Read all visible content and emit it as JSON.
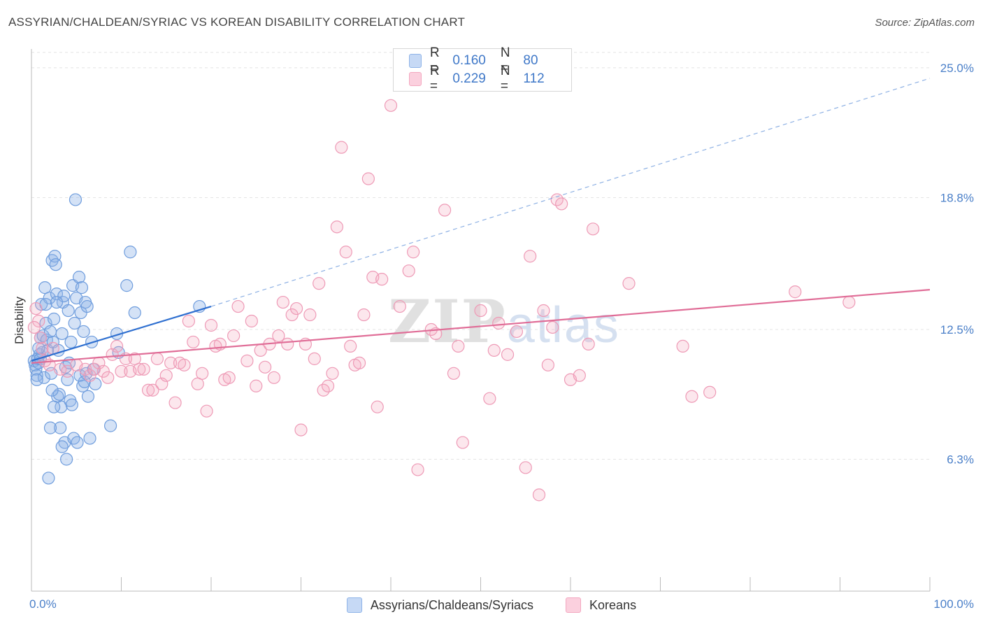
{
  "title": "ASSYRIAN/CHALDEAN/SYRIAC VS KOREAN DISABILITY CORRELATION CHART",
  "source": "Source: ZipAtlas.com",
  "watermark": {
    "zip": "ZIP",
    "atlas": "atlas"
  },
  "legend": {
    "r_label": "R =",
    "n_label": "N =",
    "rows": [
      {
        "r": "0.160",
        "n": "80"
      },
      {
        "r": "0.229",
        "n": "112"
      }
    ]
  },
  "bottom_legend": [
    "Assyrians/Chaldeans/Syriacs",
    "Koreans"
  ],
  "colors": {
    "blue": "#8fb4e8",
    "blue_line": "#2e6fd0",
    "pink": "#f3a8c0",
    "pink_line": "#e06d97",
    "grid": "#e4e4e4"
  },
  "chart_data": {
    "type": "scatter",
    "title": "ASSYRIAN/CHALDEAN/SYRIAC VS KOREAN DISABILITY CORRELATION CHART",
    "ylabel": "Disability",
    "xlabel": "",
    "xlim": [
      0,
      100
    ],
    "ylim": [
      0,
      25.9
    ],
    "x_tick_labels": [
      "0.0%",
      "100.0%"
    ],
    "y_ticks": [
      6.3,
      12.5,
      18.8,
      25.0
    ],
    "y_tick_labels": [
      "6.3%",
      "12.5%",
      "18.8%",
      "25.0%"
    ],
    "grid": true,
    "legend_placement": "top-center",
    "series": [
      {
        "name": "Assyrians/Chaldeans/Syriacs",
        "r": 0.16,
        "n": 80,
        "trend": {
          "x": [
            0,
            20
          ],
          "y": [
            11.0,
            13.6
          ],
          "extended_to": [
            100,
            24.5
          ]
        },
        "points": [
          [
            0.3,
            11.0
          ],
          [
            0.4,
            10.8
          ],
          [
            0.5,
            10.6
          ],
          [
            0.6,
            10.3
          ],
          [
            0.7,
            11.1
          ],
          [
            0.8,
            10.9
          ],
          [
            0.9,
            11.3
          ],
          [
            1.0,
            12.1
          ],
          [
            1.1,
            13.7
          ],
          [
            1.2,
            11.4
          ],
          [
            1.3,
            12.2
          ],
          [
            1.4,
            10.2
          ],
          [
            1.5,
            14.5
          ],
          [
            1.6,
            12.8
          ],
          [
            1.7,
            12.0
          ],
          [
            1.8,
            11.5
          ],
          [
            2.0,
            14.0
          ],
          [
            2.1,
            12.4
          ],
          [
            2.2,
            10.4
          ],
          [
            2.3,
            15.8
          ],
          [
            2.4,
            11.9
          ],
          [
            2.5,
            13.0
          ],
          [
            2.6,
            16.0
          ],
          [
            2.7,
            15.6
          ],
          [
            2.8,
            14.2
          ],
          [
            2.9,
            9.3
          ],
          [
            3.0,
            11.5
          ],
          [
            3.1,
            9.4
          ],
          [
            3.2,
            7.8
          ],
          [
            3.3,
            8.8
          ],
          [
            3.4,
            12.3
          ],
          [
            3.5,
            13.8
          ],
          [
            3.6,
            14.1
          ],
          [
            3.7,
            7.1
          ],
          [
            3.8,
            10.7
          ],
          [
            3.9,
            6.3
          ],
          [
            4.0,
            10.1
          ],
          [
            4.1,
            13.4
          ],
          [
            4.2,
            10.9
          ],
          [
            4.3,
            9.1
          ],
          [
            4.4,
            11.9
          ],
          [
            4.5,
            8.9
          ],
          [
            4.6,
            14.6
          ],
          [
            4.7,
            7.3
          ],
          [
            4.8,
            12.8
          ],
          [
            4.9,
            18.7
          ],
          [
            5.0,
            14.0
          ],
          [
            5.1,
            7.1
          ],
          [
            5.3,
            15.0
          ],
          [
            5.4,
            10.3
          ],
          [
            5.5,
            13.3
          ],
          [
            5.6,
            14.5
          ],
          [
            5.7,
            9.8
          ],
          [
            5.8,
            12.4
          ],
          [
            5.9,
            10.0
          ],
          [
            6.0,
            13.8
          ],
          [
            6.1,
            10.4
          ],
          [
            6.2,
            13.6
          ],
          [
            6.3,
            9.3
          ],
          [
            6.5,
            7.3
          ],
          [
            6.7,
            11.9
          ],
          [
            6.9,
            10.6
          ],
          [
            7.1,
            9.9
          ],
          [
            8.8,
            7.9
          ],
          [
            9.5,
            12.3
          ],
          [
            9.7,
            11.4
          ],
          [
            10.6,
            14.6
          ],
          [
            11.0,
            16.2
          ],
          [
            11.5,
            13.3
          ],
          [
            18.7,
            13.6
          ],
          [
            1.9,
            5.4
          ],
          [
            2.1,
            7.8
          ],
          [
            2.3,
            9.6
          ],
          [
            2.5,
            8.8
          ],
          [
            1.0,
            11.1
          ],
          [
            0.6,
            10.1
          ],
          [
            0.8,
            11.6
          ],
          [
            1.6,
            13.7
          ],
          [
            2.8,
            13.8
          ],
          [
            3.4,
            6.9
          ]
        ]
      },
      {
        "name": "Koreans",
        "r": 0.229,
        "n": 112,
        "trend": {
          "x": [
            0,
            100
          ],
          "y": [
            10.9,
            14.4
          ]
        },
        "points": [
          [
            0.5,
            13.5
          ],
          [
            0.8,
            12.9
          ],
          [
            1.0,
            12.1
          ],
          [
            1.2,
            11.6
          ],
          [
            1.5,
            11.0
          ],
          [
            2.0,
            10.8
          ],
          [
            2.4,
            11.6
          ],
          [
            3.2,
            10.6
          ],
          [
            4.0,
            10.5
          ],
          [
            5.0,
            10.8
          ],
          [
            6.0,
            10.6
          ],
          [
            6.5,
            10.3
          ],
          [
            7.0,
            10.6
          ],
          [
            7.5,
            10.9
          ],
          [
            8.0,
            10.5
          ],
          [
            8.5,
            10.2
          ],
          [
            9.0,
            11.3
          ],
          [
            9.5,
            11.7
          ],
          [
            10.0,
            10.5
          ],
          [
            10.5,
            11.1
          ],
          [
            11.0,
            10.5
          ],
          [
            11.5,
            11.1
          ],
          [
            12.0,
            10.6
          ],
          [
            12.5,
            10.6
          ],
          [
            13.0,
            9.6
          ],
          [
            13.5,
            9.6
          ],
          [
            14.0,
            11.1
          ],
          [
            14.5,
            9.9
          ],
          [
            15.0,
            10.3
          ],
          [
            15.5,
            10.9
          ],
          [
            16.0,
            9.0
          ],
          [
            16.5,
            10.9
          ],
          [
            17.0,
            10.8
          ],
          [
            17.5,
            12.9
          ],
          [
            18.0,
            11.9
          ],
          [
            18.5,
            9.9
          ],
          [
            19.0,
            10.4
          ],
          [
            19.5,
            8.6
          ],
          [
            20.0,
            12.7
          ],
          [
            20.5,
            11.7
          ],
          [
            21.0,
            11.8
          ],
          [
            21.5,
            10.1
          ],
          [
            22.0,
            10.2
          ],
          [
            22.5,
            12.2
          ],
          [
            23.0,
            13.6
          ],
          [
            24.0,
            11.0
          ],
          [
            24.5,
            12.9
          ],
          [
            25.0,
            9.8
          ],
          [
            25.5,
            11.5
          ],
          [
            26.0,
            10.7
          ],
          [
            26.5,
            11.8
          ],
          [
            27.0,
            10.2
          ],
          [
            27.5,
            12.2
          ],
          [
            28.0,
            13.8
          ],
          [
            28.5,
            11.8
          ],
          [
            29.0,
            13.2
          ],
          [
            29.5,
            13.5
          ],
          [
            30.0,
            7.7
          ],
          [
            30.5,
            11.8
          ],
          [
            31.0,
            13.2
          ],
          [
            31.5,
            11.1
          ],
          [
            32.0,
            14.7
          ],
          [
            32.5,
            9.6
          ],
          [
            33.0,
            9.8
          ],
          [
            33.5,
            10.4
          ],
          [
            34.0,
            17.4
          ],
          [
            34.5,
            21.2
          ],
          [
            35.0,
            16.2
          ],
          [
            35.5,
            11.7
          ],
          [
            36.0,
            10.8
          ],
          [
            36.5,
            10.9
          ],
          [
            37.0,
            13.2
          ],
          [
            37.5,
            19.7
          ],
          [
            38.0,
            15.0
          ],
          [
            38.5,
            8.8
          ],
          [
            39.0,
            14.9
          ],
          [
            40.0,
            23.2
          ],
          [
            41.0,
            13.6
          ],
          [
            42.0,
            15.3
          ],
          [
            42.5,
            16.2
          ],
          [
            43.0,
            5.8
          ],
          [
            44.5,
            12.5
          ],
          [
            45.0,
            12.3
          ],
          [
            46.0,
            18.2
          ],
          [
            47.0,
            10.4
          ],
          [
            47.5,
            11.7
          ],
          [
            48.0,
            7.1
          ],
          [
            50.0,
            13.4
          ],
          [
            51.0,
            9.2
          ],
          [
            51.5,
            11.5
          ],
          [
            52.0,
            12.8
          ],
          [
            53.0,
            11.3
          ],
          [
            54.0,
            12.4
          ],
          [
            55.0,
            5.9
          ],
          [
            55.5,
            16.0
          ],
          [
            56.5,
            4.6
          ],
          [
            57.0,
            13.4
          ],
          [
            57.5,
            10.8
          ],
          [
            58.0,
            12.6
          ],
          [
            58.5,
            18.7
          ],
          [
            59.0,
            18.5
          ],
          [
            60.0,
            10.1
          ],
          [
            61.0,
            10.3
          ],
          [
            62.0,
            11.8
          ],
          [
            62.5,
            17.3
          ],
          [
            66.5,
            14.7
          ],
          [
            72.5,
            11.7
          ],
          [
            73.5,
            9.3
          ],
          [
            75.5,
            9.5
          ],
          [
            85.0,
            14.3
          ],
          [
            91.0,
            13.8
          ],
          [
            0.3,
            12.6
          ]
        ]
      }
    ]
  }
}
